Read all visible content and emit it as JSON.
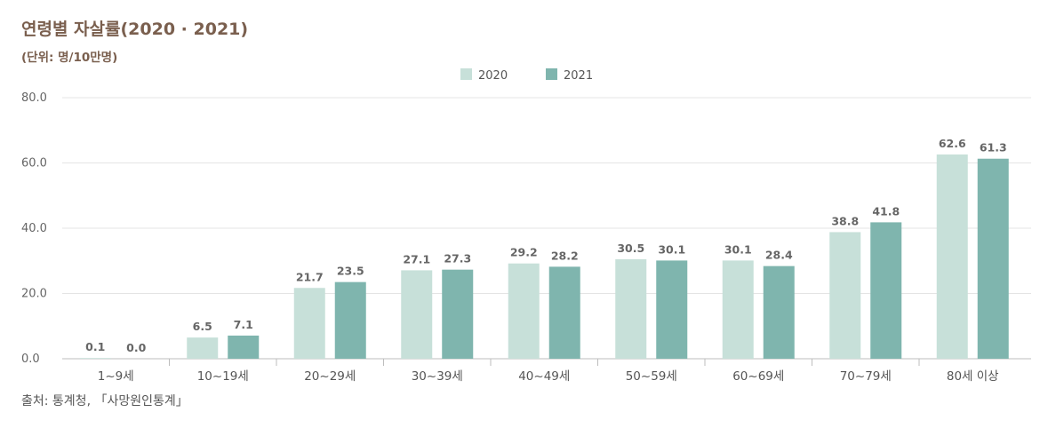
{
  "title": "연령별 자살률(2020 · 2021)",
  "unit": "(단위: 명/10만명)",
  "source": "출처: 통계청, 「사망원인통계」",
  "chart_data": {
    "type": "bar",
    "title": "연령별 자살률(2020 · 2021)",
    "xlabel": "",
    "ylabel": "",
    "ylim": [
      0,
      80
    ],
    "yticks": [
      "0.0",
      "20.0",
      "40.0",
      "60.0",
      "80.0"
    ],
    "grid": true,
    "legend_position": "top-center",
    "categories": [
      "1~9세",
      "10~19세",
      "20~29세",
      "30~39세",
      "40~49세",
      "50~59세",
      "60~69세",
      "70~79세",
      "80세 이상"
    ],
    "series": [
      {
        "name": "2020",
        "color": "#c7e0d9",
        "values": [
          0.1,
          6.5,
          21.7,
          27.1,
          29.2,
          30.5,
          30.1,
          38.8,
          62.6
        ],
        "labels": [
          "0.1",
          "6.5",
          "21.7",
          "27.1",
          "29.2",
          "30.5",
          "30.1",
          "38.8",
          "62.6"
        ]
      },
      {
        "name": "2021",
        "color": "#7fb5ae",
        "values": [
          0.0,
          7.1,
          23.5,
          27.3,
          28.2,
          30.1,
          28.4,
          41.8,
          61.3
        ],
        "labels": [
          "0.0",
          "7.1",
          "23.5",
          "27.3",
          "28.2",
          "30.1",
          "28.4",
          "41.8",
          "61.3"
        ]
      }
    ]
  }
}
